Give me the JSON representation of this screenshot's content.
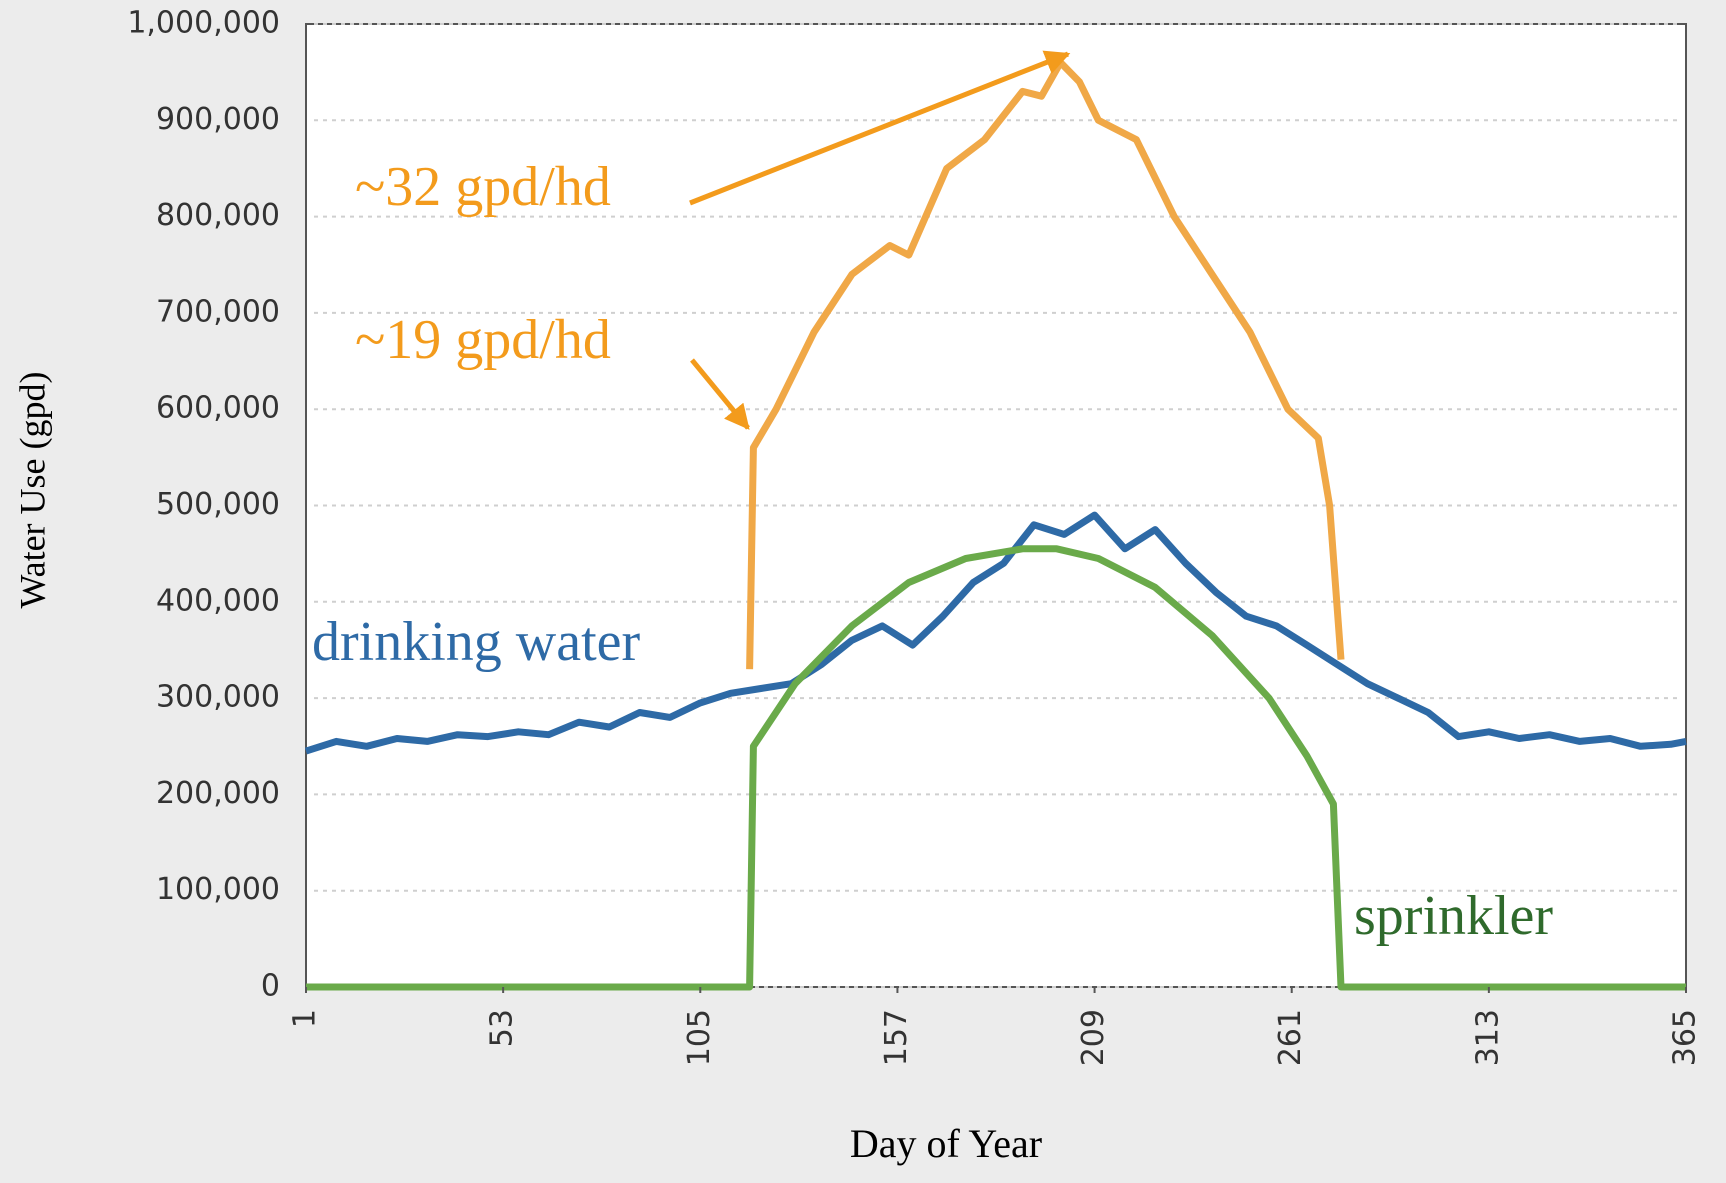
{
  "chart_data": {
    "type": "line",
    "xlabel": "Day of Year",
    "ylabel": "Water Use (gpd)",
    "xlim": [
      1,
      365
    ],
    "xticks": [
      1,
      53,
      105,
      157,
      209,
      261,
      313,
      365
    ],
    "ylim": [
      0,
      1000000
    ],
    "yticks": [
      0,
      {
        "value": 100000,
        "label": "100,000"
      },
      {
        "value": 200000,
        "label": "200,000"
      },
      {
        "value": 300000,
        "label": "300,000"
      },
      {
        "value": 400000,
        "label": "400,000"
      },
      {
        "value": 500000,
        "label": "500,000"
      },
      {
        "value": 600000,
        "label": "600,000"
      },
      {
        "value": 700000,
        "label": "700,000"
      },
      {
        "value": 800000,
        "label": "800,000"
      },
      {
        "value": 900000,
        "label": "900,000"
      },
      {
        "value": 1000000,
        "label": "1,000,000"
      }
    ],
    "grid": true,
    "annotations": [
      "~32 gpd/hd",
      "~19 gpd/hd"
    ],
    "series": [
      {
        "color": "#f0a847",
        "x": [
          118,
          119,
          125,
          135,
          145,
          155,
          160,
          170,
          180,
          190,
          195,
          200,
          205,
          210,
          220,
          230,
          240,
          250,
          260,
          268,
          271,
          274
        ],
        "values": [
          330000,
          560000,
          600000,
          680000,
          740000,
          770000,
          760000,
          850000,
          880000,
          930000,
          925000,
          960000,
          940000,
          900000,
          880000,
          800000,
          740000,
          680000,
          600000,
          570000,
          500000,
          340000
        ]
      },
      {
        "name": "drinking water",
        "color": "#2e6aa6",
        "x": [
          1,
          9,
          17,
          25,
          33,
          41,
          49,
          57,
          65,
          73,
          81,
          89,
          97,
          105,
          113,
          121,
          129,
          137,
          145,
          153,
          161,
          169,
          177,
          185,
          193,
          201,
          209,
          217,
          225,
          233,
          241,
          249,
          257,
          265,
          273,
          281,
          289,
          297,
          305,
          313,
          321,
          329,
          337,
          345,
          353,
          361,
          365
        ],
        "values": [
          245000,
          255000,
          250000,
          258000,
          255000,
          262000,
          260000,
          265000,
          262000,
          275000,
          270000,
          285000,
          280000,
          295000,
          305000,
          310000,
          315000,
          335000,
          360000,
          375000,
          355000,
          385000,
          420000,
          440000,
          480000,
          470000,
          490000,
          455000,
          475000,
          440000,
          410000,
          385000,
          375000,
          355000,
          335000,
          315000,
          300000,
          285000,
          260000,
          265000,
          258000,
          262000,
          255000,
          258000,
          250000,
          252000,
          255000
        ]
      },
      {
        "name": "sprinkler",
        "color": "#6aaa4a",
        "x": [
          1,
          118,
          119,
          130,
          145,
          160,
          175,
          190,
          199,
          210,
          225,
          240,
          255,
          265,
          272,
          274,
          365
        ],
        "values": [
          0,
          0,
          250000,
          315000,
          375000,
          420000,
          445000,
          455000,
          455000,
          445000,
          415000,
          365000,
          300000,
          240000,
          190000,
          0,
          0
        ]
      }
    ]
  }
}
